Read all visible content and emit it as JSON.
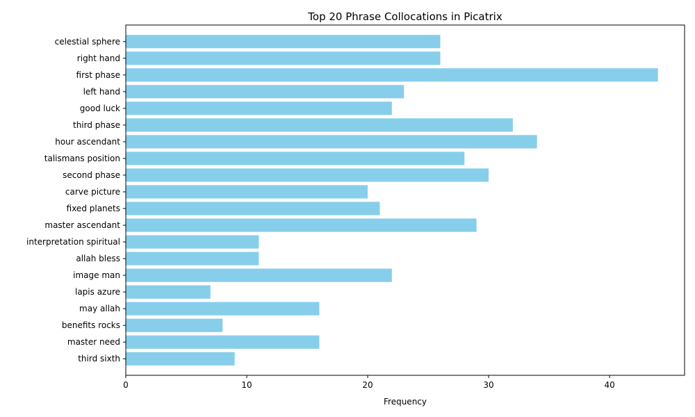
{
  "chart_data": {
    "type": "bar",
    "orientation": "horizontal",
    "title": "Top 20 Phrase Collocations in Picatrix",
    "xlabel": "Frequency",
    "ylabel": "",
    "xlim": [
      0,
      46.2
    ],
    "xticks": [
      0,
      10,
      20,
      30,
      40
    ],
    "bar_color": "#87ceeb",
    "grid": false,
    "categories": [
      "celestial sphere",
      "right hand",
      "first phase",
      "left hand",
      "good luck",
      "third phase",
      "hour ascendant",
      "talismans position",
      "second phase",
      "carve picture",
      "fixed planets",
      "master ascendant",
      "interpretation spiritual",
      "allah bless",
      "image man",
      "lapis azure",
      "may allah",
      "benefits rocks",
      "master need",
      "third sixth"
    ],
    "values": [
      26,
      26,
      44,
      23,
      22,
      32,
      34,
      28,
      30,
      20,
      21,
      29,
      11,
      11,
      22,
      7,
      16,
      8,
      16,
      9
    ]
  }
}
